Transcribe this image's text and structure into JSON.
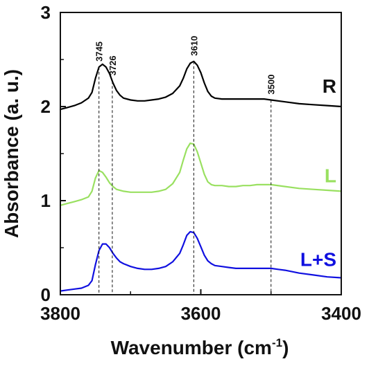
{
  "chart_data": {
    "type": "line",
    "xlabel_main": "Wavenumber (cm",
    "xlabel_sup": "-1",
    "xlabel_close": ")",
    "ylabel": "Absorbance (a. u.)",
    "xlim": [
      3800,
      3400
    ],
    "x_reversed": true,
    "ylim": [
      0,
      3
    ],
    "x_ticks": [
      {
        "value": 3800,
        "label": "3800"
      },
      {
        "value": 3600,
        "label": "3600"
      },
      {
        "value": 3400,
        "label": "3400"
      }
    ],
    "y_ticks": [
      {
        "value": 0,
        "label": "0"
      },
      {
        "value": 1,
        "label": "1"
      },
      {
        "value": 2,
        "label": "2"
      },
      {
        "value": 3,
        "label": "3"
      }
    ],
    "grid": false,
    "peak_markers": [
      {
        "x": 3745,
        "label": "3745"
      },
      {
        "x": 3726,
        "label": "3726"
      },
      {
        "x": 3610,
        "label": "3610"
      },
      {
        "x": 3500,
        "label": "3500"
      }
    ],
    "series": [
      {
        "name": "R",
        "color": "#000000",
        "x": [
          3800,
          3790,
          3780,
          3770,
          3760,
          3755,
          3750,
          3745,
          3740,
          3735,
          3730,
          3725,
          3720,
          3715,
          3710,
          3700,
          3690,
          3680,
          3670,
          3660,
          3650,
          3640,
          3630,
          3625,
          3620,
          3615,
          3610,
          3605,
          3600,
          3595,
          3590,
          3585,
          3580,
          3570,
          3560,
          3550,
          3540,
          3530,
          3520,
          3510,
          3500,
          3480,
          3460,
          3440,
          3420,
          3400
        ],
        "y": [
          1.97,
          1.99,
          2.01,
          2.04,
          2.09,
          2.15,
          2.3,
          2.42,
          2.45,
          2.42,
          2.35,
          2.25,
          2.17,
          2.12,
          2.09,
          2.07,
          2.06,
          2.06,
          2.07,
          2.08,
          2.1,
          2.14,
          2.22,
          2.3,
          2.4,
          2.46,
          2.48,
          2.44,
          2.36,
          2.25,
          2.16,
          2.11,
          2.09,
          2.08,
          2.08,
          2.08,
          2.08,
          2.08,
          2.08,
          2.08,
          2.07,
          2.05,
          2.03,
          2.02,
          2.01,
          2.0
        ]
      },
      {
        "name": "L",
        "color": "#99e060",
        "x": [
          3800,
          3790,
          3780,
          3770,
          3760,
          3755,
          3750,
          3745,
          3740,
          3735,
          3730,
          3725,
          3720,
          3710,
          3700,
          3690,
          3680,
          3670,
          3660,
          3650,
          3640,
          3630,
          3625,
          3620,
          3615,
          3610,
          3605,
          3600,
          3595,
          3590,
          3585,
          3580,
          3570,
          3560,
          3550,
          3540,
          3530,
          3520,
          3510,
          3500,
          3480,
          3460,
          3440,
          3420,
          3400
        ],
        "y": [
          0.95,
          0.97,
          0.99,
          1.01,
          1.04,
          1.1,
          1.24,
          1.32,
          1.3,
          1.25,
          1.19,
          1.15,
          1.12,
          1.1,
          1.09,
          1.09,
          1.09,
          1.09,
          1.1,
          1.12,
          1.18,
          1.3,
          1.43,
          1.55,
          1.61,
          1.6,
          1.52,
          1.4,
          1.28,
          1.2,
          1.17,
          1.16,
          1.16,
          1.15,
          1.15,
          1.16,
          1.16,
          1.17,
          1.17,
          1.17,
          1.15,
          1.13,
          1.12,
          1.11,
          1.1
        ]
      },
      {
        "name": "L+S",
        "color": "#1010e0",
        "x": [
          3800,
          3790,
          3780,
          3770,
          3760,
          3755,
          3750,
          3745,
          3740,
          3735,
          3730,
          3725,
          3720,
          3715,
          3710,
          3700,
          3690,
          3680,
          3670,
          3660,
          3650,
          3640,
          3630,
          3625,
          3620,
          3615,
          3610,
          3605,
          3600,
          3595,
          3590,
          3585,
          3580,
          3570,
          3560,
          3550,
          3540,
          3530,
          3520,
          3510,
          3500,
          3490,
          3480,
          3460,
          3440,
          3420,
          3400
        ],
        "y": [
          0.04,
          0.05,
          0.06,
          0.07,
          0.1,
          0.15,
          0.32,
          0.47,
          0.54,
          0.54,
          0.5,
          0.44,
          0.39,
          0.35,
          0.33,
          0.3,
          0.28,
          0.27,
          0.27,
          0.28,
          0.3,
          0.35,
          0.44,
          0.53,
          0.63,
          0.67,
          0.66,
          0.6,
          0.51,
          0.42,
          0.36,
          0.33,
          0.31,
          0.3,
          0.29,
          0.28,
          0.28,
          0.28,
          0.28,
          0.28,
          0.28,
          0.27,
          0.26,
          0.23,
          0.21,
          0.19,
          0.18
        ]
      }
    ]
  }
}
